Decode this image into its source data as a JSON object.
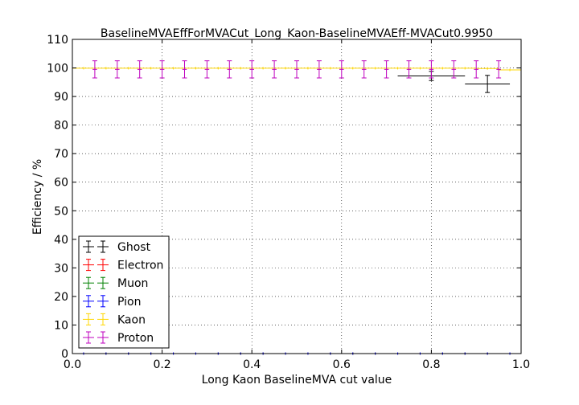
{
  "chart_data": {
    "type": "scatter",
    "title": "BaselineMVAEffForMVACut_Long_Kaon-BaselineMVAEff-MVACut0.9950",
    "xlabel": "Long Kaon BaselineMVA cut value",
    "ylabel": "Efficiency / %",
    "xlim": [
      0.0,
      1.0
    ],
    "ylim": [
      0,
      110
    ],
    "x_ticks": [
      "0.0",
      "0.2",
      "0.4",
      "0.6",
      "0.8",
      "1.0"
    ],
    "y_ticks": [
      "0",
      "10",
      "20",
      "30",
      "40",
      "50",
      "60",
      "70",
      "80",
      "90",
      "100",
      "110"
    ],
    "grid": true,
    "legend_position": "lower-left",
    "x_error": 0.025,
    "series": [
      {
        "name": "Ghost",
        "color": "#000000",
        "points": [
          {
            "x": 0.8,
            "y": 97.2,
            "xerr": 0.075,
            "yerr": 1.6
          },
          {
            "x": 0.925,
            "y": 94.4,
            "xerr": 0.05,
            "yerr": 3.0
          }
        ]
      },
      {
        "name": "Electron",
        "color": "#ff0000",
        "points": [
          {
            "x": 0.025,
            "y": 0
          },
          {
            "x": 0.075,
            "y": 0
          },
          {
            "x": 0.125,
            "y": 0
          },
          {
            "x": 0.175,
            "y": 0
          },
          {
            "x": 0.225,
            "y": 0
          },
          {
            "x": 0.275,
            "y": 0
          },
          {
            "x": 0.325,
            "y": 0
          },
          {
            "x": 0.375,
            "y": 0
          },
          {
            "x": 0.425,
            "y": 0
          },
          {
            "x": 0.475,
            "y": 0
          },
          {
            "x": 0.525,
            "y": 0
          },
          {
            "x": 0.575,
            "y": 0
          },
          {
            "x": 0.625,
            "y": 0
          },
          {
            "x": 0.675,
            "y": 0
          },
          {
            "x": 0.725,
            "y": 0
          },
          {
            "x": 0.775,
            "y": 0
          },
          {
            "x": 0.825,
            "y": 0
          },
          {
            "x": 0.875,
            "y": 0
          },
          {
            "x": 0.925,
            "y": 0
          },
          {
            "x": 0.975,
            "y": 0
          }
        ]
      },
      {
        "name": "Muon",
        "color": "#008000",
        "points": [
          {
            "x": 0.025,
            "y": 0
          },
          {
            "x": 0.075,
            "y": 0
          },
          {
            "x": 0.125,
            "y": 0
          },
          {
            "x": 0.175,
            "y": 0
          },
          {
            "x": 0.225,
            "y": 0
          },
          {
            "x": 0.275,
            "y": 0
          },
          {
            "x": 0.325,
            "y": 0
          },
          {
            "x": 0.375,
            "y": 0
          },
          {
            "x": 0.425,
            "y": 0
          },
          {
            "x": 0.475,
            "y": 0
          },
          {
            "x": 0.525,
            "y": 0
          },
          {
            "x": 0.575,
            "y": 0
          },
          {
            "x": 0.625,
            "y": 0
          },
          {
            "x": 0.675,
            "y": 0
          },
          {
            "x": 0.725,
            "y": 0
          },
          {
            "x": 0.775,
            "y": 0
          },
          {
            "x": 0.825,
            "y": 0
          },
          {
            "x": 0.875,
            "y": 0
          },
          {
            "x": 0.925,
            "y": 0
          },
          {
            "x": 0.975,
            "y": 0
          }
        ]
      },
      {
        "name": "Pion",
        "color": "#0000ff",
        "points": [
          {
            "x": 0.025,
            "y": 0
          },
          {
            "x": 0.075,
            "y": 0
          },
          {
            "x": 0.125,
            "y": 0
          },
          {
            "x": 0.175,
            "y": 0
          },
          {
            "x": 0.225,
            "y": 0
          },
          {
            "x": 0.275,
            "y": 0
          },
          {
            "x": 0.325,
            "y": 0
          },
          {
            "x": 0.375,
            "y": 0
          },
          {
            "x": 0.425,
            "y": 0
          },
          {
            "x": 0.475,
            "y": 0
          },
          {
            "x": 0.525,
            "y": 0
          },
          {
            "x": 0.575,
            "y": 0
          },
          {
            "x": 0.625,
            "y": 0
          },
          {
            "x": 0.675,
            "y": 0
          },
          {
            "x": 0.725,
            "y": 0
          },
          {
            "x": 0.775,
            "y": 0
          },
          {
            "x": 0.825,
            "y": 0
          },
          {
            "x": 0.875,
            "y": 0
          },
          {
            "x": 0.925,
            "y": 0
          },
          {
            "x": 0.975,
            "y": 0
          }
        ]
      },
      {
        "name": "Kaon",
        "color": "#ffd700",
        "points": [
          {
            "x": 0.025,
            "y": 99.9
          },
          {
            "x": 0.075,
            "y": 99.9
          },
          {
            "x": 0.125,
            "y": 99.9
          },
          {
            "x": 0.175,
            "y": 99.9
          },
          {
            "x": 0.225,
            "y": 99.9
          },
          {
            "x": 0.275,
            "y": 99.9
          },
          {
            "x": 0.325,
            "y": 99.9
          },
          {
            "x": 0.375,
            "y": 99.9
          },
          {
            "x": 0.425,
            "y": 99.9
          },
          {
            "x": 0.475,
            "y": 99.9
          },
          {
            "x": 0.525,
            "y": 99.9
          },
          {
            "x": 0.575,
            "y": 99.9
          },
          {
            "x": 0.625,
            "y": 99.9
          },
          {
            "x": 0.675,
            "y": 99.9
          },
          {
            "x": 0.725,
            "y": 99.9
          },
          {
            "x": 0.775,
            "y": 99.9
          },
          {
            "x": 0.825,
            "y": 99.9
          },
          {
            "x": 0.875,
            "y": 99.9
          },
          {
            "x": 0.925,
            "y": 99.8
          },
          {
            "x": 0.975,
            "y": 99.3
          }
        ]
      },
      {
        "name": "Proton",
        "color": "#bf00bf",
        "points": [
          {
            "x": 0.05,
            "y": 99.5,
            "xerr": 0.005,
            "yerr": 3.0
          },
          {
            "x": 0.1,
            "y": 99.5,
            "xerr": 0.005,
            "yerr": 3.0
          },
          {
            "x": 0.15,
            "y": 99.5,
            "xerr": 0.005,
            "yerr": 3.0
          },
          {
            "x": 0.2,
            "y": 99.5,
            "xerr": 0.005,
            "yerr": 3.0
          },
          {
            "x": 0.25,
            "y": 99.5,
            "xerr": 0.005,
            "yerr": 3.0
          },
          {
            "x": 0.3,
            "y": 99.5,
            "xerr": 0.005,
            "yerr": 3.0
          },
          {
            "x": 0.35,
            "y": 99.5,
            "xerr": 0.005,
            "yerr": 3.0
          },
          {
            "x": 0.4,
            "y": 99.5,
            "xerr": 0.005,
            "yerr": 3.0
          },
          {
            "x": 0.45,
            "y": 99.5,
            "xerr": 0.005,
            "yerr": 3.0
          },
          {
            "x": 0.5,
            "y": 99.5,
            "xerr": 0.005,
            "yerr": 3.0
          },
          {
            "x": 0.55,
            "y": 99.5,
            "xerr": 0.005,
            "yerr": 3.0
          },
          {
            "x": 0.6,
            "y": 99.5,
            "xerr": 0.005,
            "yerr": 3.0
          },
          {
            "x": 0.65,
            "y": 99.5,
            "xerr": 0.005,
            "yerr": 3.0
          },
          {
            "x": 0.7,
            "y": 99.5,
            "xerr": 0.005,
            "yerr": 3.0
          },
          {
            "x": 0.75,
            "y": 99.5,
            "xerr": 0.005,
            "yerr": 3.0
          },
          {
            "x": 0.8,
            "y": 99.5,
            "xerr": 0.005,
            "yerr": 3.0
          },
          {
            "x": 0.85,
            "y": 99.5,
            "xerr": 0.005,
            "yerr": 3.0
          },
          {
            "x": 0.9,
            "y": 99.5,
            "xerr": 0.005,
            "yerr": 3.0
          },
          {
            "x": 0.95,
            "y": 99.5,
            "xerr": 0.005,
            "yerr": 3.0
          }
        ]
      }
    ]
  }
}
